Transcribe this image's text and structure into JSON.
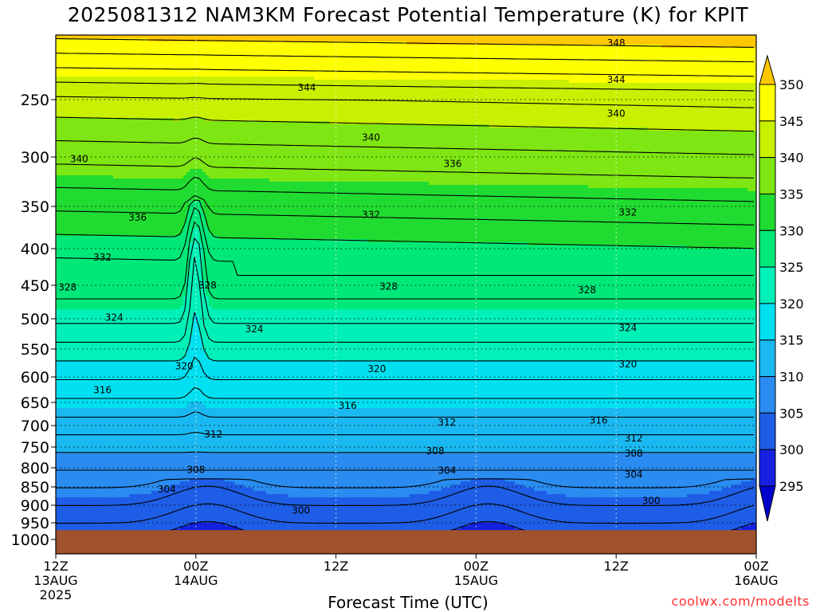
{
  "title": "2025081312 NAM3KM Forecast Potential Temperature (K) for KPIT",
  "xlabel": "Forecast Time (UTC)",
  "credit": "coolwx.com/modelts",
  "chart_data": {
    "type": "heatmap",
    "title": "2025081312 NAM3KM Forecast Potential Temperature (K) for KPIT",
    "xlabel": "Forecast Time (UTC)",
    "ylabel": "",
    "x_hours_range": [
      0,
      60
    ],
    "y_pressure_range": [
      185,
      1020
    ],
    "x_ticks": [
      {
        "hour": 0,
        "label": [
          "12Z",
          "13AUG",
          "2025"
        ]
      },
      {
        "hour": 12,
        "label": [
          "00Z",
          "14AUG"
        ]
      },
      {
        "hour": 24,
        "label": [
          "12Z"
        ]
      },
      {
        "hour": 36,
        "label": [
          "00Z",
          "15AUG"
        ]
      },
      {
        "hour": 48,
        "label": [
          "12Z"
        ]
      },
      {
        "hour": 60,
        "label": [
          "00Z",
          "16AUG"
        ]
      }
    ],
    "y_ticks": [
      250,
      300,
      350,
      400,
      450,
      500,
      550,
      600,
      650,
      700,
      750,
      800,
      850,
      900,
      950,
      1000
    ],
    "colorbar": {
      "levels": [
        295,
        300,
        305,
        310,
        315,
        320,
        325,
        330,
        335,
        340,
        345,
        350
      ],
      "colors": [
        "#0000cc",
        "#1520e0",
        "#1e5ee6",
        "#2a8cf0",
        "#1ab8f0",
        "#00e0f0",
        "#00f0b8",
        "#00e878",
        "#20dc30",
        "#7ee612",
        "#c8f000",
        "#ffff00",
        "#ffc800"
      ]
    },
    "contour_labels": [
      {
        "value": "348",
        "hour": 48.0,
        "p": 193
      },
      {
        "value": "344",
        "hour": 48.0,
        "p": 230
      },
      {
        "value": "340",
        "hour": 48.0,
        "p": 262
      },
      {
        "value": "344",
        "hour": 21.5,
        "p": 238
      },
      {
        "value": "340",
        "hour": 27.0,
        "p": 283
      },
      {
        "value": "336",
        "hour": 34.0,
        "p": 307
      },
      {
        "value": "340",
        "hour": 2.0,
        "p": 302
      },
      {
        "value": "336",
        "hour": 7.0,
        "p": 363
      },
      {
        "value": "332",
        "hour": 27.0,
        "p": 360
      },
      {
        "value": "332",
        "hour": 49.0,
        "p": 357
      },
      {
        "value": "332",
        "hour": 4.0,
        "p": 412
      },
      {
        "value": "328",
        "hour": 1.0,
        "p": 453
      },
      {
        "value": "328",
        "hour": 13.0,
        "p": 450
      },
      {
        "value": "328",
        "hour": 28.5,
        "p": 452
      },
      {
        "value": "328",
        "hour": 45.5,
        "p": 457
      },
      {
        "value": "324",
        "hour": 5.0,
        "p": 498
      },
      {
        "value": "324",
        "hour": 17.0,
        "p": 517
      },
      {
        "value": "324",
        "hour": 49.0,
        "p": 515
      },
      {
        "value": "320",
        "hour": 11.0,
        "p": 581
      },
      {
        "value": "320",
        "hour": 27.5,
        "p": 586
      },
      {
        "value": "320",
        "hour": 49.0,
        "p": 577
      },
      {
        "value": "316",
        "hour": 4.0,
        "p": 626
      },
      {
        "value": "316",
        "hour": 25.0,
        "p": 657
      },
      {
        "value": "316",
        "hour": 46.5,
        "p": 689
      },
      {
        "value": "312",
        "hour": 13.5,
        "p": 720
      },
      {
        "value": "312",
        "hour": 33.5,
        "p": 693
      },
      {
        "value": "312",
        "hour": 49.5,
        "p": 730
      },
      {
        "value": "308",
        "hour": 32.5,
        "p": 760
      },
      {
        "value": "308",
        "hour": 49.5,
        "p": 765
      },
      {
        "value": "308",
        "hour": 12.0,
        "p": 805
      },
      {
        "value": "304",
        "hour": 33.5,
        "p": 807
      },
      {
        "value": "304",
        "hour": 49.5,
        "p": 818
      },
      {
        "value": "304",
        "hour": 9.5,
        "p": 856
      },
      {
        "value": "300",
        "hour": 21.0,
        "p": 915
      },
      {
        "value": "300",
        "hour": 51.0,
        "p": 888
      }
    ]
  }
}
